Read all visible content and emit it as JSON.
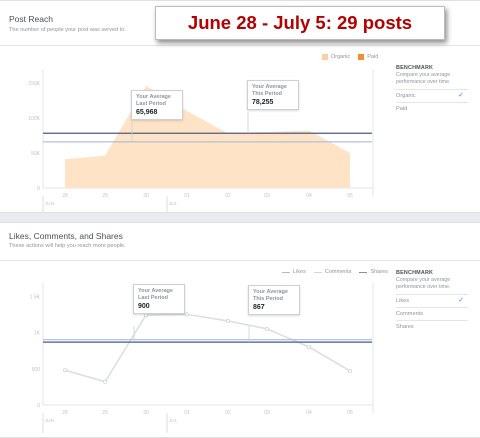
{
  "overlay": {
    "text": "June 28 - July 5:  29 posts"
  },
  "reach": {
    "title": "Post Reach",
    "subtitle": "The number of people your post was served to.",
    "legend": [
      {
        "label": "Organic",
        "color": "#fcd0a1"
      },
      {
        "label": "Paid",
        "color": "#f48c30"
      }
    ],
    "y_ticks": [
      "150K",
      "100K",
      "50K",
      "0"
    ],
    "x_ticks": [
      "28",
      "29",
      "30",
      "01",
      "02",
      "03",
      "04",
      "05"
    ],
    "months": [
      "JUN",
      "JUL"
    ],
    "callout_last": {
      "label": "Your Average Last Period",
      "value": "65,968"
    },
    "callout_this": {
      "label": "Your Average This Period",
      "value": "78,255"
    },
    "benchmark": {
      "title": "BENCHMARK",
      "subtitle": "Compare your average performance over time.",
      "options": [
        {
          "label": "Organic",
          "selected": true
        },
        {
          "label": "Paid",
          "selected": false
        }
      ]
    }
  },
  "engagement": {
    "title": "Likes, Comments, and Shares",
    "subtitle": "These actions will help you reach more people.",
    "legend": [
      {
        "label": "Likes",
        "color": "#d7a8b8"
      },
      {
        "label": "Comments",
        "color": "#d0d4de"
      },
      {
        "label": "Shares",
        "color": "#9b86a9"
      }
    ],
    "y_ticks": [
      "1.5K",
      "1K",
      "500",
      "0"
    ],
    "x_ticks": [
      "28",
      "29",
      "30",
      "01",
      "02",
      "03",
      "04",
      "05"
    ],
    "months": [
      "JUN",
      "JUL"
    ],
    "callout_last": {
      "label": "Your Average Last Period",
      "value": "900"
    },
    "callout_this": {
      "label": "Your Average This Period",
      "value": "867"
    },
    "benchmark": {
      "title": "BENCHMARK",
      "subtitle": "Compare your average performance over time.",
      "options": [
        {
          "label": "Likes",
          "selected": true
        },
        {
          "label": "Comments",
          "selected": false
        },
        {
          "label": "Shares",
          "selected": false
        }
      ]
    }
  },
  "chart_data": [
    {
      "type": "area",
      "title": "Post Reach",
      "categories": [
        "28",
        "29",
        "30",
        "01",
        "02",
        "03",
        "04",
        "05"
      ],
      "series": [
        {
          "name": "Organic",
          "values": [
            41000,
            46000,
            146000,
            110000,
            78000,
            80000,
            82000,
            50000
          ]
        }
      ],
      "reference_lines": [
        {
          "name": "Your Average Last Period",
          "value": 65968
        },
        {
          "name": "Your Average This Period",
          "value": 78255
        }
      ],
      "ylim": [
        0,
        160000
      ],
      "grid": false,
      "legend": "top-right"
    },
    {
      "type": "line",
      "title": "Likes, Comments, and Shares",
      "categories": [
        "28",
        "29",
        "30",
        "01",
        "02",
        "03",
        "04",
        "05"
      ],
      "series": [
        {
          "name": "Likes",
          "values": [
            480,
            320,
            1240,
            1250,
            1160,
            1050,
            800,
            470
          ]
        }
      ],
      "reference_lines": [
        {
          "name": "Your Average Last Period",
          "value": 900
        },
        {
          "name": "Your Average This Period",
          "value": 867
        }
      ],
      "ylim": [
        0,
        1600
      ],
      "grid": false,
      "legend": "top-right"
    }
  ]
}
